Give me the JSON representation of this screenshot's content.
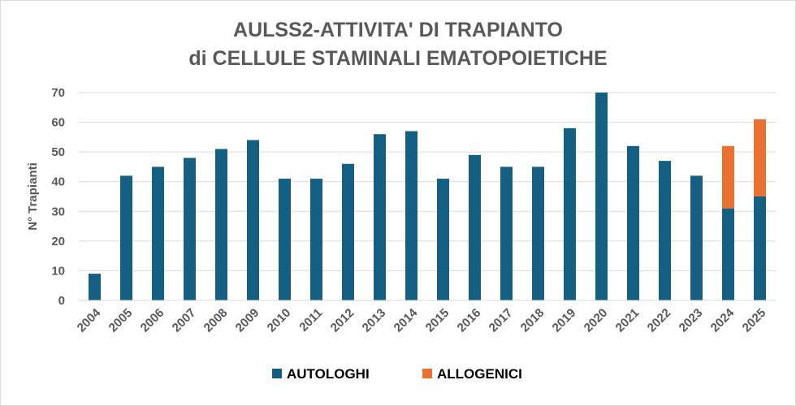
{
  "chart_data": {
    "type": "bar",
    "stacked": true,
    "title_line1": "AULSS2-ATTIVITA' DI TRAPIANTO",
    "title_line2": "di CELLULE STAMINALI EMATOPOIETICHE",
    "ylabel": "N° Trapianti",
    "xlabel": "",
    "ylim": [
      0,
      70
    ],
    "yticks": [
      0,
      10,
      20,
      30,
      40,
      50,
      60,
      70
    ],
    "grid": true,
    "legend_position": "bottom",
    "categories": [
      "2004",
      "2005",
      "2006",
      "2007",
      "2008",
      "2009",
      "2010",
      "2011",
      "2012",
      "2013",
      "2014",
      "2015",
      "2016",
      "2017",
      "2018",
      "2019",
      "2020",
      "2021",
      "2022",
      "2023",
      "2024",
      "2025"
    ],
    "series": [
      {
        "name": "AUTOLOGHI",
        "color": "#156082",
        "values": [
          9,
          42,
          45,
          48,
          51,
          54,
          41,
          41,
          46,
          56,
          57,
          41,
          49,
          45,
          45,
          58,
          70,
          52,
          47,
          42,
          31,
          35
        ]
      },
      {
        "name": "ALLOGENICI",
        "color": "#E97132",
        "values": [
          0,
          0,
          0,
          0,
          0,
          0,
          0,
          0,
          0,
          0,
          0,
          0,
          0,
          0,
          0,
          0,
          0,
          0,
          0,
          0,
          21,
          26
        ]
      }
    ]
  }
}
